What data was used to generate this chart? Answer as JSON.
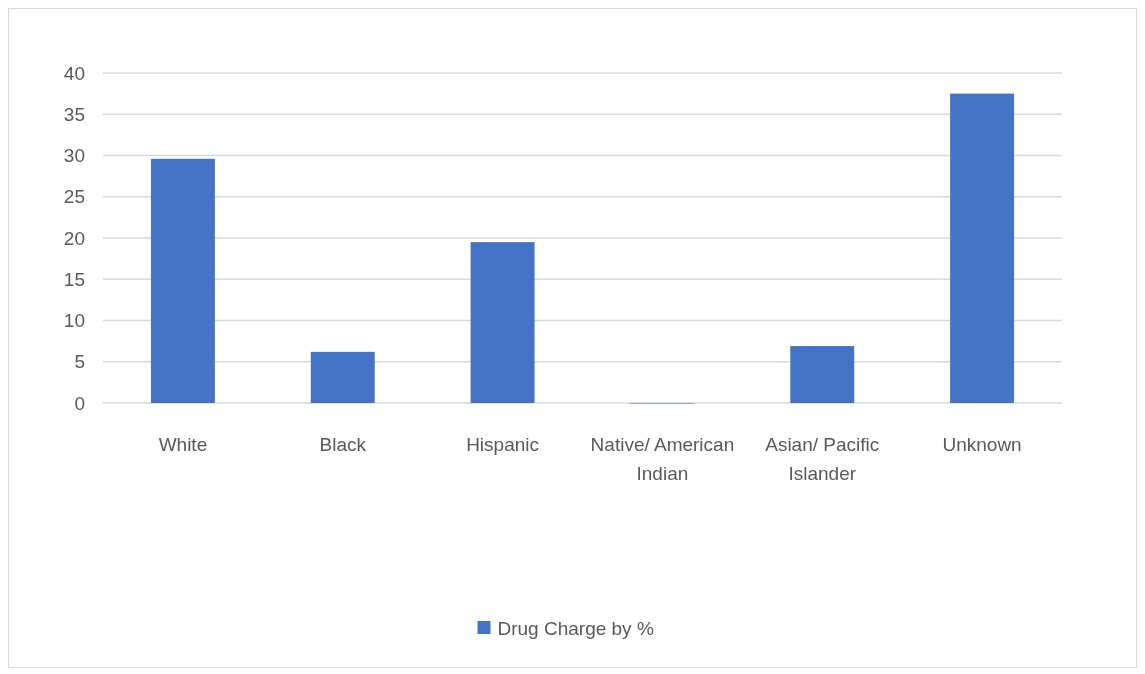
{
  "chart_data": {
    "type": "bar",
    "categories": [
      "White",
      "Black",
      "Hispanic",
      "Native/ American Indian",
      "Asian/ Pacific Islander",
      "Unknown"
    ],
    "series": [
      {
        "name": "Drug Charge by %",
        "color": "#4472c4",
        "values": [
          29.6,
          6.2,
          19.5,
          0,
          6.9,
          37.5
        ]
      }
    ],
    "ylim": [
      0,
      40
    ],
    "yticks": [
      0,
      5,
      10,
      15,
      20,
      25,
      30,
      35,
      40
    ],
    "grid": "y",
    "legend": "bottom"
  }
}
